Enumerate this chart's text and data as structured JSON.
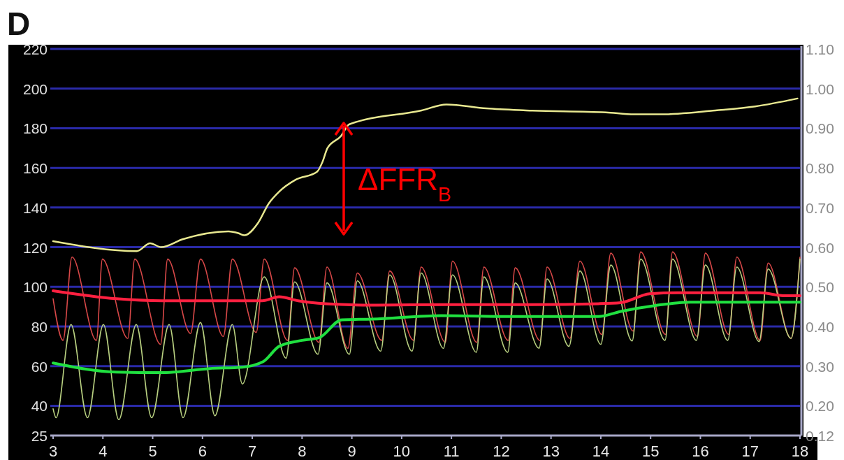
{
  "chart_data": {
    "type": "line",
    "title": "D",
    "xlim": [
      3,
      18
    ],
    "xticks": [
      3,
      4,
      5,
      6,
      7,
      8,
      9,
      10,
      11,
      12,
      13,
      14,
      15,
      16,
      17,
      18
    ],
    "ylim": [
      25,
      220
    ],
    "yticks": [
      25,
      40,
      60,
      80,
      100,
      120,
      140,
      160,
      180,
      200,
      220
    ],
    "y2lim": [
      0.125,
      1.1
    ],
    "y2ticks": [
      {
        "value": 0.125,
        "label": "0.12"
      },
      {
        "value": 0.2,
        "label": "0.20"
      },
      {
        "value": 0.3,
        "label": "0.30"
      },
      {
        "value": 0.4,
        "label": "0.40"
      },
      {
        "value": 0.5,
        "label": "0.50"
      },
      {
        "value": 0.6,
        "label": "0.60"
      },
      {
        "value": 0.7,
        "label": "0.70"
      },
      {
        "value": 0.8,
        "label": "0.80"
      },
      {
        "value": 0.9,
        "label": "0.90"
      },
      {
        "value": 1.0,
        "label": "1.00"
      },
      {
        "value": 1.1,
        "label": "1.10"
      }
    ],
    "grid": "y",
    "annotations": [
      "ΔFFR$_{B}$"
    ],
    "series": [
      {
        "color": "#d84848",
        "x": [
          3,
          3.2,
          3.38,
          3.87,
          3.99,
          4.5,
          4.64,
          5.16,
          5.3,
          5.76,
          5.96,
          6.42,
          6.6,
          7.08,
          7.24,
          7.71,
          7.85,
          8.34,
          8.5,
          8.92,
          9.11,
          9.6,
          9.76,
          10.24,
          10.39,
          10.88,
          11.02,
          11.51,
          11.65,
          12.14,
          12.28,
          12.78,
          12.92,
          13.38,
          13.58,
          14.02,
          14.2,
          14.65,
          14.8,
          15.3,
          15.44,
          15.94,
          16.1,
          16.57,
          16.73,
          17.2,
          17.36,
          17.82,
          18
        ],
        "values": [
          94,
          73,
          115,
          73,
          114,
          74,
          114,
          71,
          114,
          76.5,
          114,
          75,
          114,
          77,
          114,
          73,
          109.6,
          72,
          110,
          69,
          107,
          73,
          108,
          73,
          110,
          72,
          113,
          72,
          110,
          73,
          109.6,
          73,
          110,
          74,
          113,
          76,
          117,
          77.7,
          117.6,
          76,
          117.6,
          75,
          117,
          76,
          115,
          73,
          112,
          74,
          115
        ]
      },
      {
        "color": "#b8d080",
        "x": [
          3,
          3.06,
          3.36,
          3.69,
          4.01,
          4.32,
          4.67,
          4.98,
          5.33,
          5.61,
          5.96,
          6.25,
          6.6,
          6.8,
          7.24,
          7.68,
          7.85,
          8.32,
          8.5,
          8.95,
          9.11,
          9.58,
          9.76,
          10.21,
          10.39,
          10.84,
          11.02,
          11.5,
          11.65,
          12.13,
          12.28,
          12.76,
          12.92,
          13.36,
          13.58,
          14,
          14.2,
          14.63,
          14.8,
          15.29,
          15.44,
          15.92,
          16.1,
          16.55,
          16.73,
          17.18,
          17.36,
          17.82,
          18
        ],
        "values": [
          38.5,
          34,
          81,
          34,
          81,
          33,
          81,
          34,
          81,
          34,
          82,
          35,
          81,
          51,
          105,
          64,
          102.5,
          66,
          102,
          66,
          103,
          67.6,
          106,
          67.6,
          107,
          69,
          106,
          67,
          105,
          67,
          102,
          69,
          104,
          70,
          108,
          71,
          111,
          72.7,
          114,
          73,
          114,
          73,
          111,
          73,
          110,
          72.4,
          109,
          74,
          114
        ]
      },
      {
        "color": "#ff2040",
        "x": [
          3,
          4.27,
          5.2,
          6.5,
          7.2,
          7.54,
          7.92,
          8.48,
          9.4,
          11,
          12.35,
          13.95,
          14.4,
          14.98,
          15.54,
          17.2,
          17.7,
          18
        ],
        "values": [
          98,
          94,
          93,
          93,
          93,
          95,
          93,
          91.5,
          90.8,
          91,
          91,
          91.5,
          92,
          96.5,
          97,
          97,
          95.5,
          95.5
        ]
      },
      {
        "color": "#20e040",
        "x": [
          3,
          4.27,
          5.2,
          6.14,
          6.8,
          7.22,
          7.54,
          8,
          8.34,
          8.8,
          9.4,
          10.8,
          12.35,
          13.95,
          14.4,
          15.1,
          15.8,
          18
        ],
        "values": [
          61.6,
          57,
          56.7,
          58.8,
          59.5,
          62.3,
          70,
          73,
          74.3,
          83.4,
          83.7,
          85.5,
          85,
          85,
          87.6,
          90.6,
          92.3,
          92.3
        ]
      },
      {
        "axis": "y2",
        "color": "#e8e890",
        "x": [
          3,
          4.68,
          4.95,
          5.17,
          5.6,
          6.52,
          6.73,
          6.84,
          7.11,
          7.33,
          7.54,
          7.87,
          8.3,
          8.41,
          8.51,
          8.78,
          8.95,
          10.4,
          10.9,
          11.7,
          12.5,
          14.1,
          14.67,
          15.2,
          16.3,
          17.1,
          17.95
        ],
        "values": [
          0.615,
          0.59,
          0.61,
          0.6,
          0.62,
          0.64,
          0.635,
          0.63,
          0.66,
          0.71,
          0.74,
          0.77,
          0.79,
          0.815,
          0.85,
          0.88,
          0.91,
          0.945,
          0.96,
          0.95,
          0.945,
          0.94,
          0.935,
          0.935,
          0.945,
          0.955,
          0.975
        ]
      }
    ]
  }
}
